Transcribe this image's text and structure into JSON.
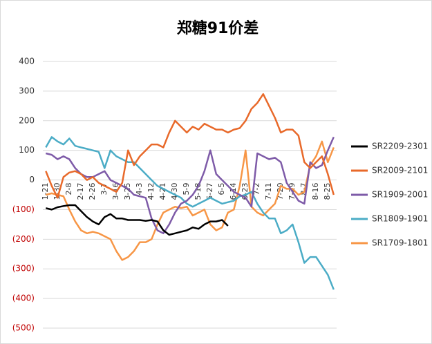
{
  "chart_data": {
    "type": "line",
    "title": "郑糖91价差",
    "categories": [
      "1-21",
      null,
      "1-30",
      null,
      "2-8",
      null,
      "2-17",
      null,
      "2-26",
      null,
      "3-7",
      null,
      "3-16",
      null,
      "3-25",
      null,
      "4-3",
      null,
      "4-12",
      null,
      "4-21",
      null,
      "4-30",
      null,
      "5-9",
      null,
      "5-18",
      null,
      "5-27",
      null,
      "6-5",
      null,
      "6-14",
      null,
      "6-23",
      null,
      "7-2",
      null,
      "7-11",
      null,
      "7-20",
      null,
      "7-29",
      null,
      "8-7",
      null,
      "8-16",
      null,
      "8-25",
      null
    ],
    "series": [
      {
        "name": "SR2209-2301",
        "color": "#000000",
        "values": [
          -95,
          -100,
          -92,
          -88,
          -85,
          -85,
          -105,
          -125,
          -140,
          -150,
          -125,
          -115,
          -130,
          -130,
          -135,
          -135,
          -135,
          -138,
          -135,
          -140,
          -170,
          -185,
          -180,
          -175,
          -170,
          -160,
          -165,
          -150,
          -140,
          -140,
          -135,
          -155,
          null,
          null,
          null,
          null,
          null,
          null,
          null,
          null,
          null,
          null,
          null,
          null,
          null,
          null,
          null,
          null,
          null,
          null
        ]
      },
      {
        "name": "SR2009-2101",
        "color": "#e8692a",
        "values": [
          30,
          -20,
          -60,
          10,
          25,
          30,
          20,
          0,
          10,
          -10,
          -20,
          -30,
          -40,
          -10,
          100,
          50,
          80,
          100,
          120,
          120,
          110,
          160,
          200,
          180,
          160,
          180,
          170,
          190,
          180,
          170,
          170,
          160,
          170,
          175,
          200,
          240,
          260,
          290,
          250,
          210,
          160,
          170,
          170,
          150,
          60,
          40,
          60,
          80,
          20,
          -50
        ]
      },
      {
        "name": "SR1909-2001",
        "color": "#7e5ba8",
        "values": [
          90,
          85,
          70,
          80,
          70,
          40,
          20,
          10,
          10,
          20,
          30,
          0,
          -10,
          -20,
          -30,
          -50,
          -55,
          -60,
          -130,
          -170,
          -180,
          -150,
          -110,
          -80,
          -70,
          -50,
          -20,
          30,
          100,
          20,
          0,
          -20,
          -40,
          -50,
          -60,
          -90,
          90,
          80,
          70,
          75,
          60,
          -10,
          -40,
          -70,
          -80,
          60,
          40,
          50,
          100,
          145
        ]
      },
      {
        "name": "SR1809-1901",
        "color": "#4bacc6",
        "values": [
          110,
          145,
          130,
          120,
          140,
          115,
          110,
          105,
          100,
          95,
          40,
          100,
          80,
          70,
          60,
          60,
          40,
          20,
          0,
          -20,
          -30,
          -40,
          -50,
          -60,
          -80,
          -90,
          -80,
          -70,
          -60,
          -70,
          -80,
          -75,
          -70,
          -55,
          -50,
          -40,
          -80,
          -110,
          -130,
          -130,
          -180,
          -170,
          -150,
          -210,
          -280,
          -260,
          -260,
          -290,
          -320,
          -370
        ]
      },
      {
        "name": "SR1709-1801",
        "color": "#f79646",
        "values": [
          -50,
          -45,
          -50,
          -55,
          -100,
          -140,
          -170,
          -180,
          -175,
          -180,
          -190,
          -200,
          -240,
          -270,
          -260,
          -240,
          -210,
          -210,
          -200,
          -150,
          -110,
          -100,
          -90,
          -95,
          -90,
          -120,
          -110,
          -100,
          -150,
          -170,
          -160,
          -110,
          -100,
          -20,
          100,
          -90,
          -110,
          -120,
          -100,
          -80,
          -20,
          -30,
          -30,
          -50,
          -40,
          50,
          80,
          130,
          60,
          110
        ]
      }
    ],
    "ylim": [
      -500,
      400
    ],
    "yticks": [
      400,
      300,
      200,
      100,
      0,
      {
        "value": -100,
        "label": "(100)"
      },
      {
        "value": -200,
        "label": "(200)"
      },
      {
        "value": -300,
        "label": "(300)"
      },
      {
        "value": -400,
        "label": "(400)"
      },
      {
        "value": -500,
        "label": "(500)"
      }
    ],
    "negative_tick_color": "#c00000",
    "grid": true,
    "legend": "right"
  }
}
